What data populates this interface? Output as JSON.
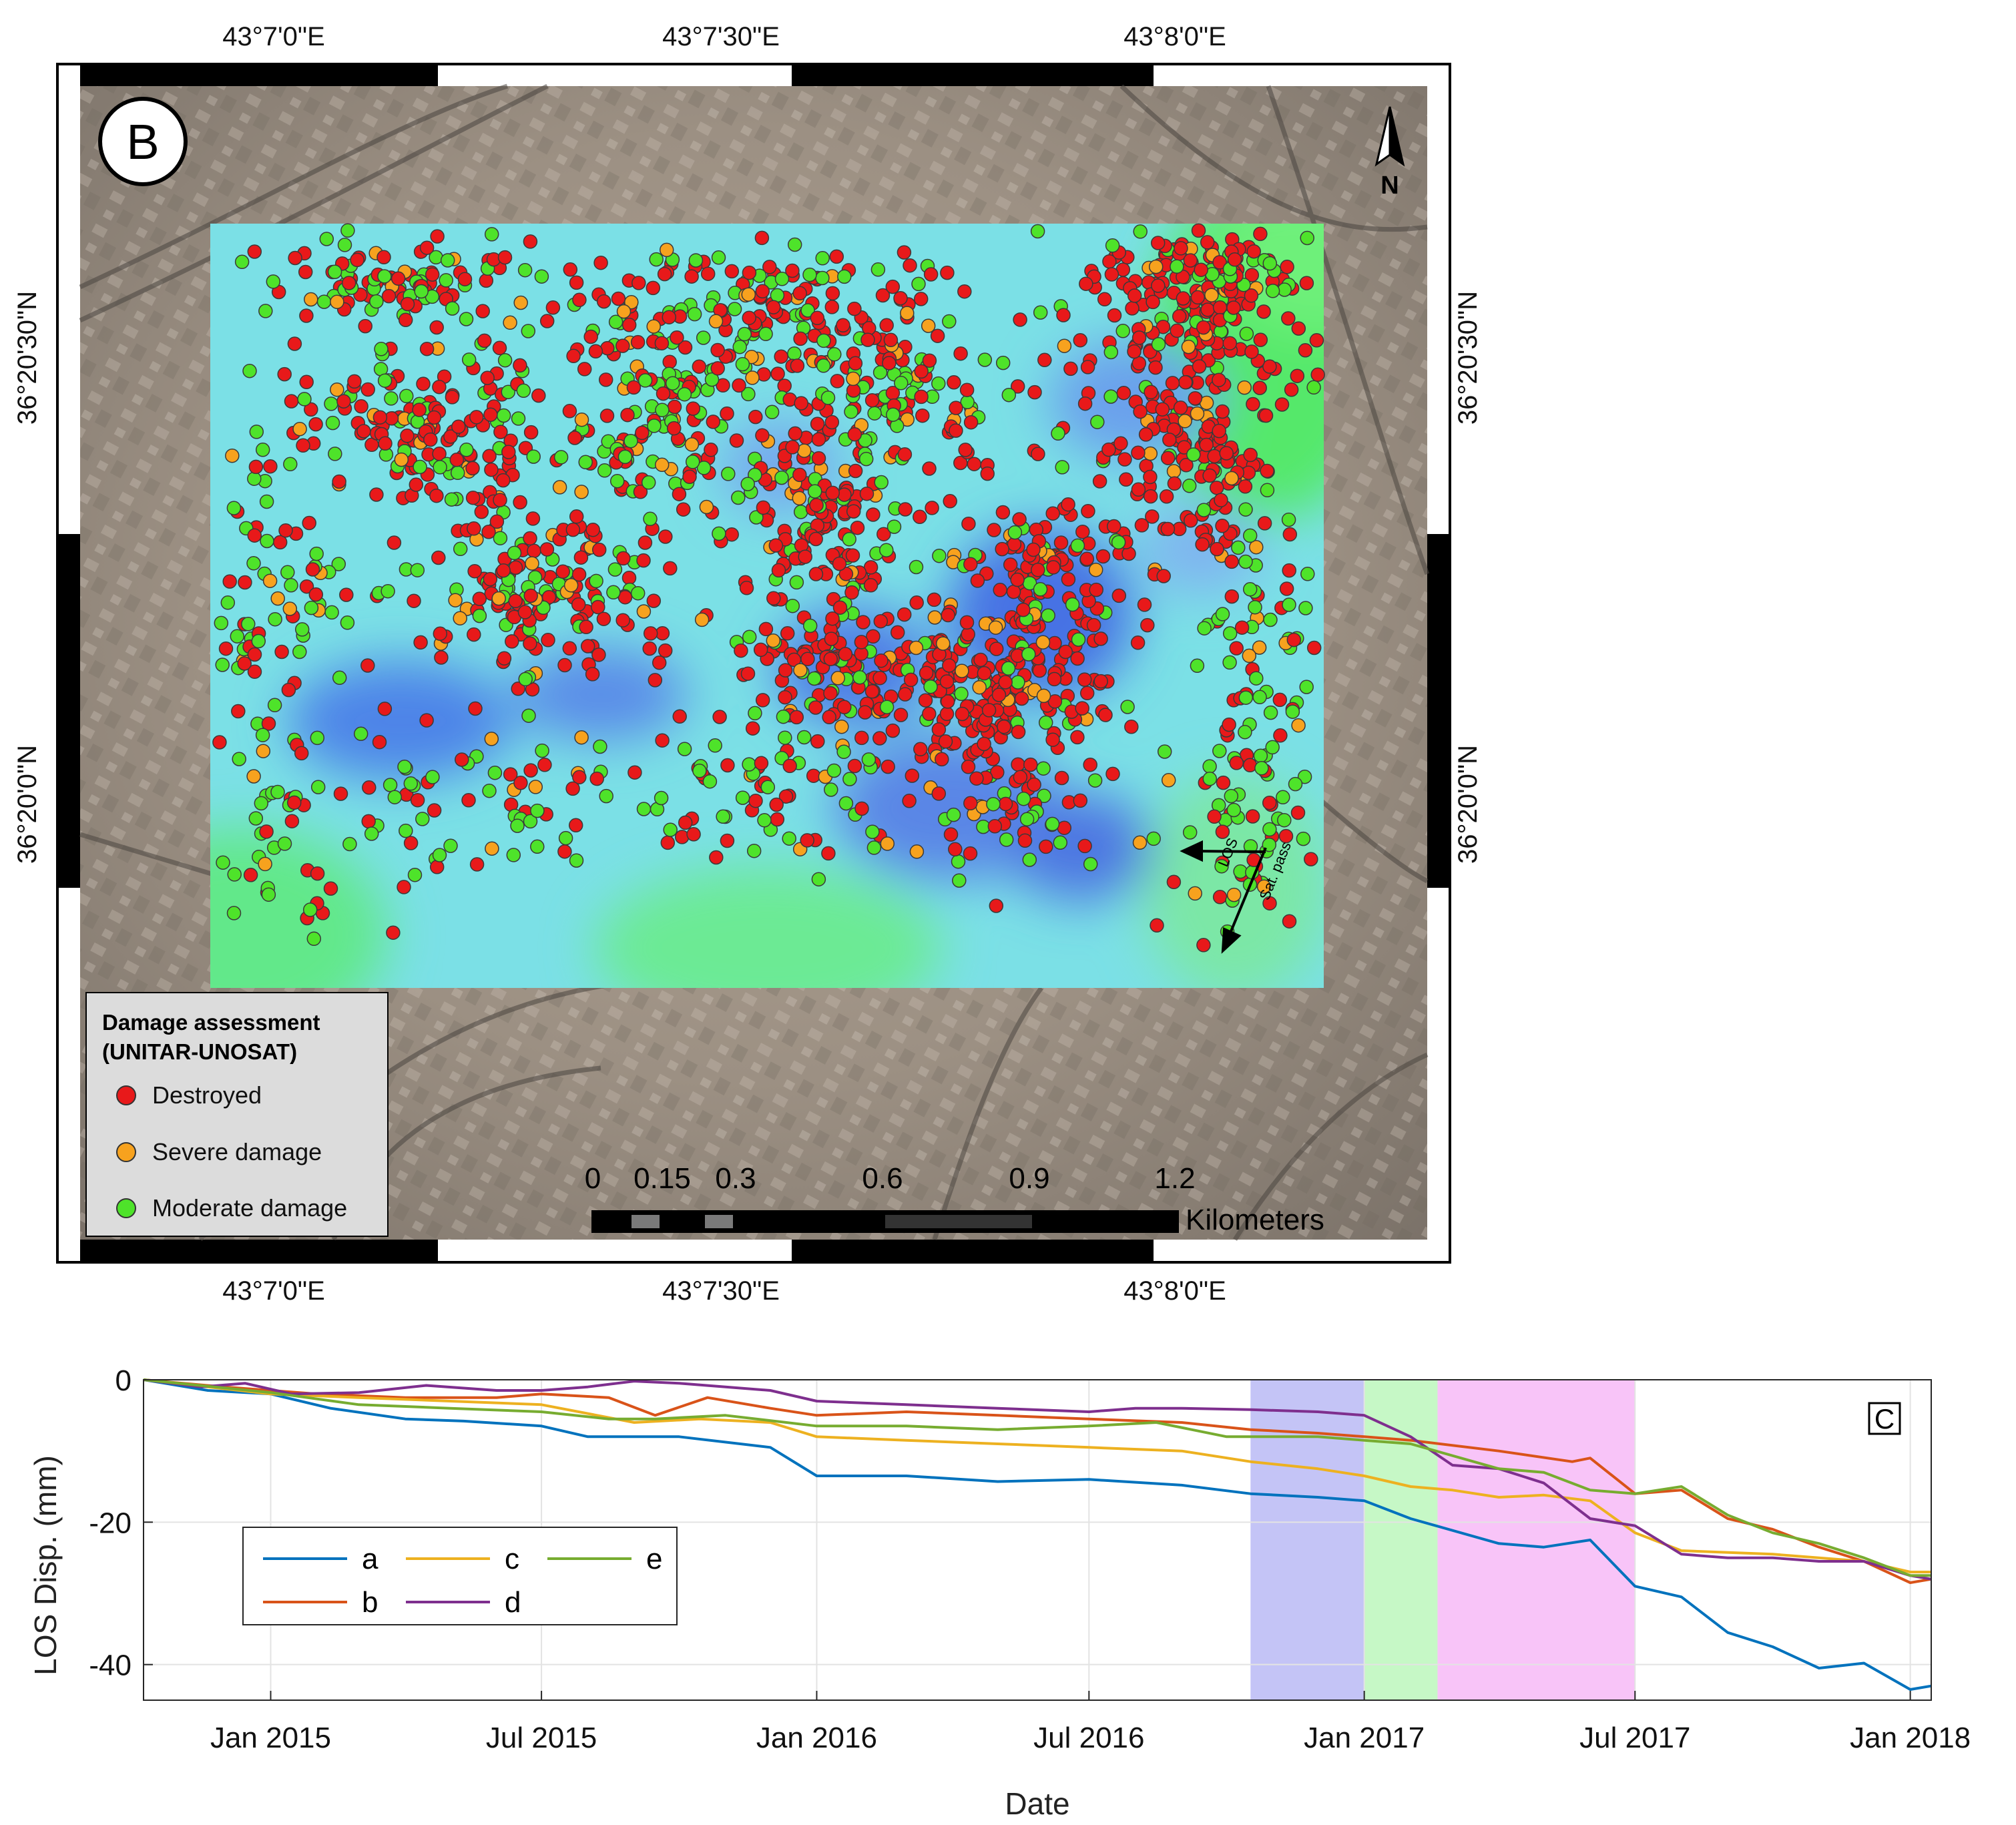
{
  "map": {
    "panel_label": "B",
    "north_label": "N",
    "lon_labels": [
      "43°7'0\"E",
      "43°7'30\"E",
      "43°8'0\"E"
    ],
    "lat_labels": [
      "36°20'30\"N",
      "36°20'0\"N"
    ],
    "legend": {
      "title_line1": "Damage assessment",
      "title_line2": "(UNITAR-UNOSAT)",
      "items": [
        {
          "label": "Destroyed",
          "color": "#e8191a"
        },
        {
          "label": "Severe damage",
          "color": "#f7a21e"
        },
        {
          "label": "Moderate damage",
          "color": "#4ee32a"
        }
      ]
    },
    "scalebar": {
      "ticks": [
        "0",
        "0.15",
        "0.3",
        "0.6",
        "0.9",
        "1.2"
      ],
      "unit": "Kilometers"
    },
    "arrow_labels": {
      "los": "LOS",
      "track": "Sat. pass"
    }
  },
  "chart_data": {
    "type": "line",
    "panel_label": "C",
    "xlabel": "Date",
    "ylabel": "LOS Disp. (mm)",
    "xlim": [
      "2014-10-08",
      "2018-01-15"
    ],
    "ylim": [
      -45,
      0
    ],
    "yticks": [
      0,
      -20,
      -40
    ],
    "xticks": [
      {
        "date": "2015-01-01",
        "label": "Jan 2015"
      },
      {
        "date": "2015-07-01",
        "label": "Jul 2015"
      },
      {
        "date": "2016-01-01",
        "label": "Jan 2016"
      },
      {
        "date": "2016-07-01",
        "label": "Jul 2016"
      },
      {
        "date": "2017-01-01",
        "label": "Jan 2017"
      },
      {
        "date": "2017-07-01",
        "label": "Jul 2017"
      },
      {
        "date": "2018-01-01",
        "label": "Jan 2018"
      }
    ],
    "grid": true,
    "legend_position": "lower-left",
    "shaded_periods": [
      {
        "start": "2016-10-17",
        "end": "2017-01-01",
        "color": "#c4c4f6"
      },
      {
        "start": "2017-01-01",
        "end": "2017-02-19",
        "color": "#c6f8c6"
      },
      {
        "start": "2017-02-19",
        "end": "2017-07-01",
        "color": "#f8c4f8"
      }
    ],
    "series": [
      {
        "name": "a",
        "color": "#0072bd",
        "points": [
          [
            "2014-10-08",
            0
          ],
          [
            "2014-11-20",
            -1.5
          ],
          [
            "2015-01-01",
            -2
          ],
          [
            "2015-02-10",
            -4
          ],
          [
            "2015-04-01",
            -5.5
          ],
          [
            "2015-05-10",
            -5.8
          ],
          [
            "2015-07-01",
            -6.5
          ],
          [
            "2015-08-01",
            -8
          ],
          [
            "2015-10-01",
            -8
          ],
          [
            "2015-12-01",
            -9.5
          ],
          [
            "2016-01-01",
            -13.5
          ],
          [
            "2016-03-01",
            -13.5
          ],
          [
            "2016-05-01",
            -14.3
          ],
          [
            "2016-07-01",
            -14
          ],
          [
            "2016-09-01",
            -14.8
          ],
          [
            "2016-10-17",
            -16
          ],
          [
            "2016-12-01",
            -16.5
          ],
          [
            "2017-01-01",
            -17
          ],
          [
            "2017-02-01",
            -19.5
          ],
          [
            "2017-04-01",
            -23
          ],
          [
            "2017-05-01",
            -23.5
          ],
          [
            "2017-06-01",
            -22.5
          ],
          [
            "2017-07-01",
            -29
          ],
          [
            "2017-08-01",
            -30.5
          ],
          [
            "2017-09-01",
            -35.5
          ],
          [
            "2017-10-01",
            -37.5
          ],
          [
            "2017-11-01",
            -40.5
          ],
          [
            "2017-12-01",
            -39.8
          ],
          [
            "2018-01-01",
            -43.5
          ],
          [
            "2018-01-15",
            -43
          ]
        ]
      },
      {
        "name": "b",
        "color": "#d95319",
        "points": [
          [
            "2014-10-08",
            0
          ],
          [
            "2014-12-01",
            -1
          ],
          [
            "2015-01-01",
            -1.5
          ],
          [
            "2015-02-01",
            -2
          ],
          [
            "2015-04-01",
            -2.5
          ],
          [
            "2015-06-01",
            -2.5
          ],
          [
            "2015-07-01",
            -2
          ],
          [
            "2015-08-15",
            -2.5
          ],
          [
            "2015-09-15",
            -5
          ],
          [
            "2015-10-20",
            -2.5
          ],
          [
            "2015-12-01",
            -4
          ],
          [
            "2016-01-01",
            -5
          ],
          [
            "2016-03-01",
            -4.5
          ],
          [
            "2016-05-01",
            -5
          ],
          [
            "2016-07-01",
            -5.5
          ],
          [
            "2016-09-01",
            -6
          ],
          [
            "2016-10-17",
            -7
          ],
          [
            "2016-12-01",
            -7.5
          ],
          [
            "2017-01-01",
            -8
          ],
          [
            "2017-02-01",
            -8.5
          ],
          [
            "2017-04-01",
            -10
          ],
          [
            "2017-05-20",
            -11.5
          ],
          [
            "2017-06-01",
            -11
          ],
          [
            "2017-07-01",
            -16
          ],
          [
            "2017-08-01",
            -15.5
          ],
          [
            "2017-09-01",
            -19.5
          ],
          [
            "2017-10-01",
            -21
          ],
          [
            "2017-11-01",
            -23.5
          ],
          [
            "2017-12-01",
            -25.5
          ],
          [
            "2018-01-01",
            -28.5
          ],
          [
            "2018-01-15",
            -28
          ]
        ]
      },
      {
        "name": "c",
        "color": "#edb120",
        "points": [
          [
            "2014-10-08",
            0
          ],
          [
            "2015-01-01",
            -2
          ],
          [
            "2015-03-01",
            -2.5
          ],
          [
            "2015-05-01",
            -3
          ],
          [
            "2015-07-01",
            -3.5
          ],
          [
            "2015-09-01",
            -6
          ],
          [
            "2015-10-15",
            -5.5
          ],
          [
            "2015-12-01",
            -6
          ],
          [
            "2016-01-01",
            -8
          ],
          [
            "2016-03-01",
            -8.5
          ],
          [
            "2016-05-01",
            -9
          ],
          [
            "2016-07-01",
            -9.5
          ],
          [
            "2016-09-01",
            -10
          ],
          [
            "2016-10-17",
            -11.5
          ],
          [
            "2016-12-01",
            -12.5
          ],
          [
            "2017-01-01",
            -13.5
          ],
          [
            "2017-02-01",
            -15
          ],
          [
            "2017-03-01",
            -15.5
          ],
          [
            "2017-04-01",
            -16.5
          ],
          [
            "2017-05-01",
            -16.2
          ],
          [
            "2017-06-01",
            -17
          ],
          [
            "2017-07-01",
            -21.5
          ],
          [
            "2017-08-01",
            -24
          ],
          [
            "2017-10-01",
            -24.5
          ],
          [
            "2017-12-01",
            -25.5
          ],
          [
            "2018-01-01",
            -27
          ],
          [
            "2018-01-15",
            -27
          ]
        ]
      },
      {
        "name": "d",
        "color": "#7e2f8e",
        "points": [
          [
            "2014-10-08",
            0
          ],
          [
            "2014-11-15",
            -1
          ],
          [
            "2014-12-15",
            -0.5
          ],
          [
            "2015-01-15",
            -2
          ],
          [
            "2015-03-01",
            -1.8
          ],
          [
            "2015-04-15",
            -0.8
          ],
          [
            "2015-06-01",
            -1.5
          ],
          [
            "2015-07-01",
            -1.5
          ],
          [
            "2015-08-01",
            -1
          ],
          [
            "2015-09-01",
            -0.2
          ],
          [
            "2015-10-01",
            -0.5
          ],
          [
            "2015-12-01",
            -1.5
          ],
          [
            "2016-01-01",
            -3
          ],
          [
            "2016-03-01",
            -3.5
          ],
          [
            "2016-05-01",
            -4
          ],
          [
            "2016-07-01",
            -4.5
          ],
          [
            "2016-08-01",
            -4
          ],
          [
            "2016-09-01",
            -4
          ],
          [
            "2016-10-17",
            -4.2
          ],
          [
            "2016-12-01",
            -4.5
          ],
          [
            "2017-01-01",
            -5
          ],
          [
            "2017-02-01",
            -8
          ],
          [
            "2017-03-01",
            -12
          ],
          [
            "2017-04-01",
            -12.5
          ],
          [
            "2017-05-01",
            -14.5
          ],
          [
            "2017-06-01",
            -19.5
          ],
          [
            "2017-07-01",
            -20.5
          ],
          [
            "2017-08-01",
            -24.5
          ],
          [
            "2017-09-01",
            -25
          ],
          [
            "2017-10-01",
            -25
          ],
          [
            "2017-11-01",
            -25.5
          ],
          [
            "2017-12-01",
            -25.5
          ],
          [
            "2018-01-01",
            -27.5
          ],
          [
            "2018-01-15",
            -28
          ]
        ]
      },
      {
        "name": "e",
        "color": "#77ac30",
        "points": [
          [
            "2014-10-08",
            0
          ],
          [
            "2015-01-01",
            -1.8
          ],
          [
            "2015-03-01",
            -3.5
          ],
          [
            "2015-05-01",
            -4
          ],
          [
            "2015-07-01",
            -4.5
          ],
          [
            "2015-08-15",
            -5.5
          ],
          [
            "2015-09-15",
            -5.5
          ],
          [
            "2015-11-01",
            -5
          ],
          [
            "2016-01-01",
            -6.5
          ],
          [
            "2016-03-01",
            -6.5
          ],
          [
            "2016-05-01",
            -7
          ],
          [
            "2016-07-01",
            -6.5
          ],
          [
            "2016-08-15",
            -6
          ],
          [
            "2016-10-01",
            -8
          ],
          [
            "2016-12-01",
            -8
          ],
          [
            "2017-01-01",
            -8.5
          ],
          [
            "2017-02-01",
            -9
          ],
          [
            "2017-04-01",
            -12.5
          ],
          [
            "2017-05-01",
            -13
          ],
          [
            "2017-06-01",
            -15.5
          ],
          [
            "2017-07-01",
            -16
          ],
          [
            "2017-08-01",
            -15
          ],
          [
            "2017-09-01",
            -19
          ],
          [
            "2017-10-01",
            -21.5
          ],
          [
            "2017-11-01",
            -23
          ],
          [
            "2017-12-01",
            -25
          ],
          [
            "2018-01-01",
            -27.5
          ],
          [
            "2018-01-15",
            -27.5
          ]
        ]
      }
    ]
  }
}
